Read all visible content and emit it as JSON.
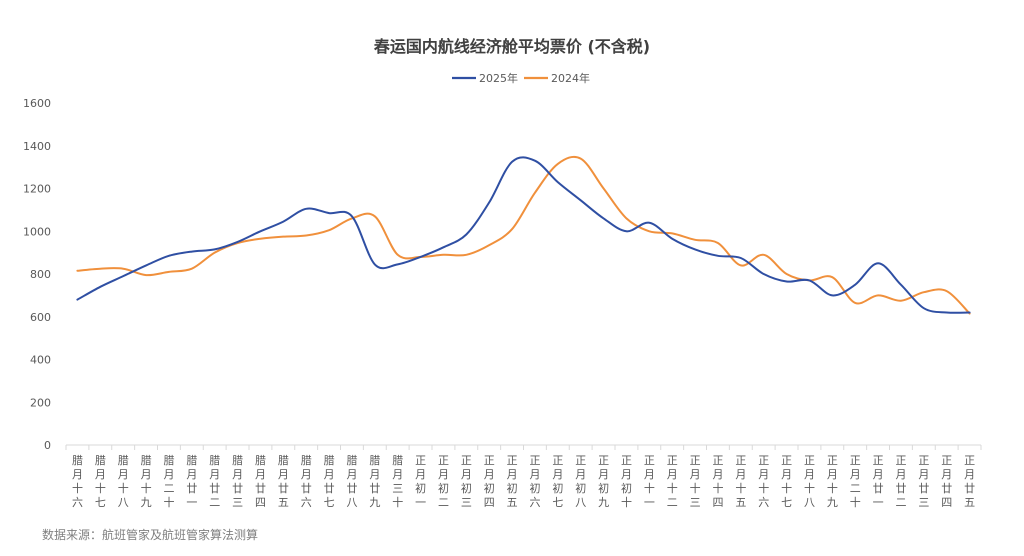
{
  "chart_data": {
    "type": "line",
    "title": "春运国内航线经济舱平均票价 (不含税)",
    "xlabel": "",
    "ylabel": "",
    "ylim": [
      0,
      1600
    ],
    "yticks": [
      0,
      200,
      400,
      600,
      800,
      1000,
      1200,
      1400,
      1600
    ],
    "legend_position": "top",
    "grid": false,
    "categories": [
      "腊月十六",
      "腊月十七",
      "腊月十八",
      "腊月十九",
      "腊月二十",
      "腊月廿一",
      "腊月廿二",
      "腊月廿三",
      "腊月廿四",
      "腊月廿五",
      "腊月廿六",
      "腊月廿七",
      "腊月廿八",
      "腊月廿九",
      "腊月三十",
      "正月初一",
      "正月初二",
      "正月初三",
      "正月初四",
      "正月初五",
      "正月初六",
      "正月初七",
      "正月初八",
      "正月初九",
      "正月初十",
      "正月十一",
      "正月十二",
      "正月十三",
      "正月十四",
      "正月十五",
      "正月十六",
      "正月十七",
      "正月十八",
      "正月十九",
      "正月二十",
      "正月廿一",
      "正月廿二",
      "正月廿三",
      "正月廿四",
      "正月廿五"
    ],
    "series": [
      {
        "name": "2025年",
        "color": "#2f4fa3",
        "values": [
          680,
          740,
          790,
          840,
          885,
          905,
          915,
          950,
          1000,
          1045,
          1105,
          1085,
          1070,
          845,
          845,
          880,
          925,
          985,
          1135,
          1325,
          1330,
          1230,
          1145,
          1060,
          1000,
          1040,
          965,
          915,
          885,
          875,
          800,
          765,
          770,
          700,
          750,
          850,
          750,
          640,
          620,
          620
        ]
      },
      {
        "name": "2024年",
        "color": "#f0903c",
        "values": [
          815,
          825,
          825,
          795,
          810,
          825,
          900,
          945,
          965,
          975,
          980,
          1005,
          1060,
          1070,
          890,
          880,
          890,
          890,
          935,
          1010,
          1180,
          1315,
          1340,
          1200,
          1060,
          1000,
          990,
          960,
          945,
          840,
          890,
          800,
          770,
          785,
          665,
          700,
          675,
          715,
          720,
          615
        ]
      }
    ]
  },
  "source": "数据来源：航班管家及航班管家算法测算"
}
